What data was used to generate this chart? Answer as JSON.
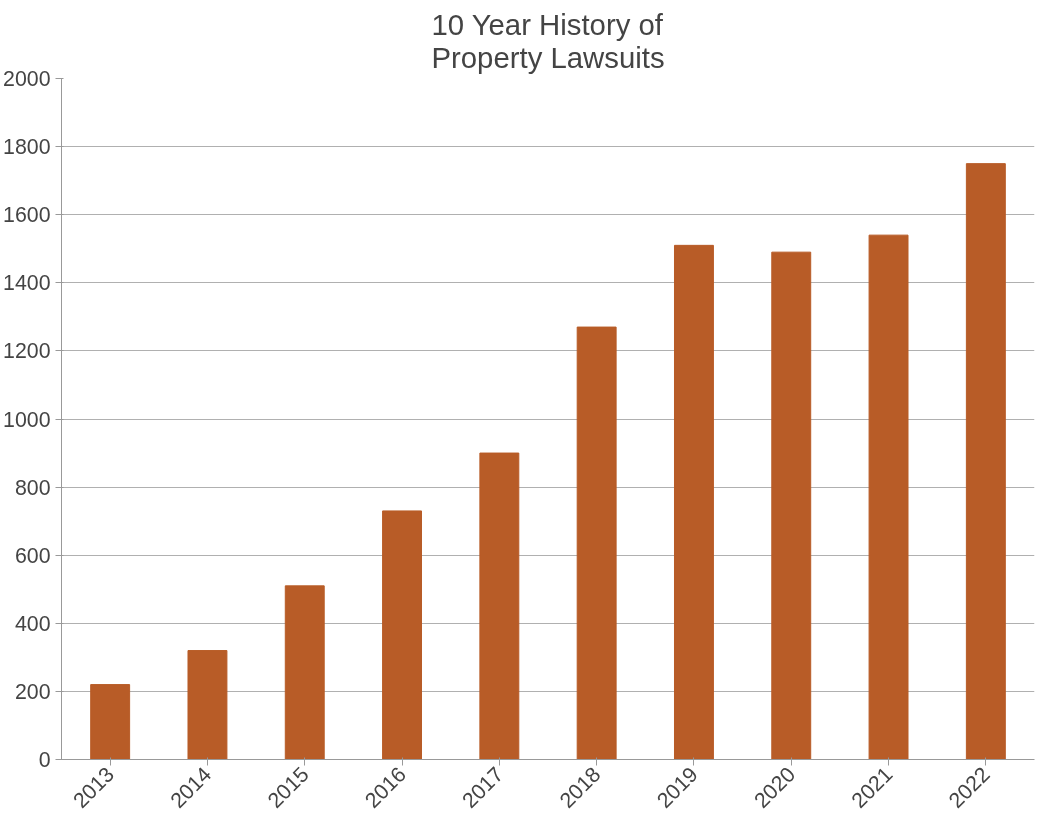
{
  "chart_data": {
    "type": "bar",
    "title": "10 Year History of\nProperty Lawsuits",
    "categories": [
      "2013",
      "2014",
      "2015",
      "2016",
      "2017",
      "2018",
      "2019",
      "2020",
      "2021",
      "2022"
    ],
    "values": [
      220,
      320,
      510,
      730,
      900,
      1270,
      1510,
      1490,
      1540,
      1750
    ],
    "color": "#b85c27",
    "ylim": [
      0,
      2000
    ],
    "yticks": [
      0,
      200,
      400,
      600,
      800,
      1000,
      1200,
      1400,
      1600,
      1800,
      2000
    ],
    "grid": "y"
  }
}
